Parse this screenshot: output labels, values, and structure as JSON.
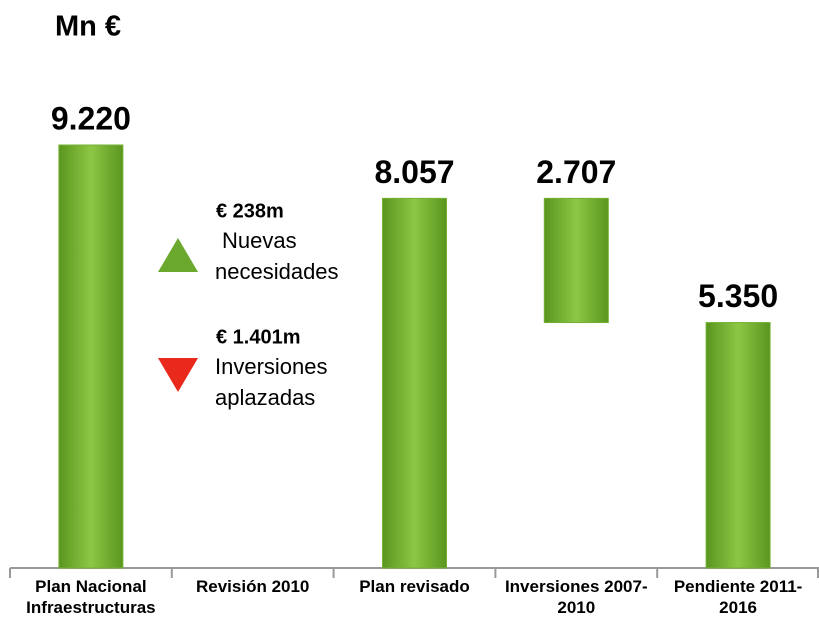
{
  "chart_data": {
    "type": "waterfall",
    "title": "Mn €",
    "categories": [
      "Plan Nacional Infraestructuras",
      "Revisión 2010",
      "Plan revisado",
      "Inversiones 2007-2010",
      "Pendiente 2011-2016"
    ],
    "values": [
      9220,
      null,
      8057,
      2707,
      5350
    ],
    "value_labels": [
      "9.220",
      null,
      "8.057",
      "2.707",
      "5.350"
    ],
    "measures": [
      "total",
      null,
      "total",
      "decrease",
      "total"
    ],
    "color": "#74b134",
    "annotations": [
      {
        "amount": "€ 238m",
        "lines": [
          "Nuevas",
          "necesidades"
        ],
        "direction": "up",
        "color": "#6aa82e"
      },
      {
        "amount": "€ 1.401m",
        "lines": [
          "Inversiones",
          "aplazadas"
        ],
        "direction": "down",
        "color": "#e8291c"
      }
    ]
  }
}
